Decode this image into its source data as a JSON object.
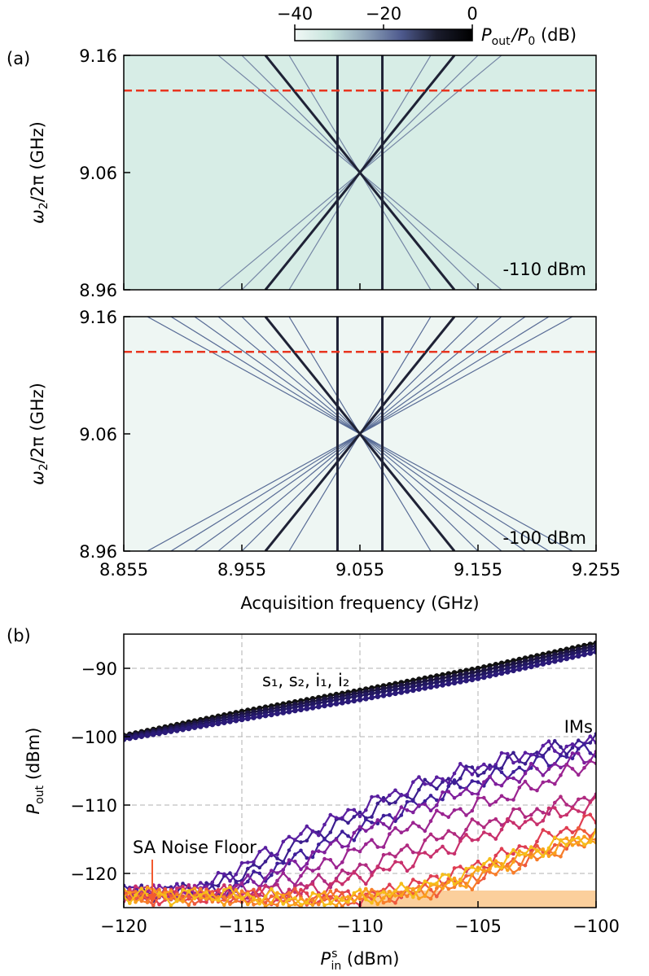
{
  "figure": {
    "label_a": "(a)",
    "label_b": "(b)"
  },
  "colorbar": {
    "ticks": [
      "−40",
      "−20",
      "0"
    ],
    "tick_values": [
      -40,
      -20,
      0
    ],
    "range": [
      -40,
      0
    ],
    "label_main": "P",
    "label_sub_out": "out",
    "label_slash": "/P",
    "label_sub_zero": "0",
    "label_unit": " (dB)",
    "colors": [
      "#f1f8f6",
      "#c6e3dc",
      "#8ea3b8",
      "#4e5a8e",
      "#1a1c2c",
      "#000000"
    ]
  },
  "chart_data": [
    {
      "type": "heatmap",
      "panel": "a-top",
      "annotation": "-110 dBm",
      "ylabel_main": "ω",
      "ylabel_sub": "2",
      "ylabel_rest": "/2π (GHz)",
      "yticks": [
        "9.16",
        "9.06",
        "8.96"
      ],
      "ytick_values": [
        9.16,
        9.06,
        8.96
      ],
      "xlim": [
        8.855,
        9.255
      ],
      "ylim": [
        8.96,
        9.16
      ],
      "dashed_line_y": 9.13,
      "background": "#d7ede6",
      "vertical_lines_x": [
        9.036,
        9.074
      ],
      "main_diagonals": [
        {
          "x0": 8.975,
          "y0": 9.16,
          "x1": 9.135,
          "y1": 8.96
        },
        {
          "x0": 9.135,
          "y0": 9.16,
          "x1": 8.975,
          "y1": 8.96
        }
      ],
      "faint_diagonals_pivot_x": [
        8.935,
        8.955,
        8.995,
        9.115,
        9.155,
        9.175
      ],
      "dashed_line_color": "#e8351f",
      "strong_line_color": "#1f2236",
      "faint_line_color": "#6f7fa0"
    },
    {
      "type": "heatmap",
      "panel": "a-bottom",
      "annotation": "-100 dBm",
      "ylabel_main": "ω",
      "ylabel_sub": "2",
      "ylabel_rest": "/2π (GHz)",
      "yticks": [
        "9.16",
        "9.06",
        "8.96"
      ],
      "ytick_values": [
        9.16,
        9.06,
        8.96
      ],
      "xlabel": "Acquisition frequency (GHz)",
      "xticks": [
        "8.855",
        "8.955",
        "9.055",
        "9.155",
        "9.255"
      ],
      "xtick_values": [
        8.855,
        8.955,
        9.055,
        9.155,
        9.255
      ],
      "xlim": [
        8.855,
        9.255
      ],
      "ylim": [
        8.96,
        9.16
      ],
      "dashed_line_y": 9.13,
      "background": "#eef6f3",
      "vertical_lines_x": [
        9.036,
        9.074
      ],
      "main_diagonals": [
        {
          "x0": 8.975,
          "y0": 9.16,
          "x1": 9.135,
          "y1": 8.96
        },
        {
          "x0": 9.135,
          "y0": 9.16,
          "x1": 8.975,
          "y1": 8.96
        }
      ],
      "faint_diagonals_pivot_x": [
        8.875,
        8.895,
        8.915,
        8.935,
        8.955,
        8.995,
        9.115,
        9.155,
        9.175,
        9.195,
        9.215,
        9.235
      ],
      "dashed_line_color": "#e8351f",
      "strong_line_color": "#1f2236",
      "faint_line_color": "#4f6390"
    },
    {
      "type": "line",
      "panel": "b",
      "xlabel_main": "P",
      "xlabel_sup": "s",
      "xlabel_sub": "in",
      "xlabel_unit": " (dBm)",
      "ylabel_main": "P",
      "ylabel_sub": "out",
      "ylabel_unit": " (dBm)",
      "xlim": [
        -120,
        -100
      ],
      "ylim": [
        -125,
        -85
      ],
      "xticks": [
        "−120",
        "−115",
        "−110",
        "−105",
        "−100"
      ],
      "xtick_values": [
        -120,
        -115,
        -110,
        -105,
        -100
      ],
      "yticks": [
        "−90",
        "−100",
        "−110",
        "−120"
      ],
      "ytick_values": [
        -90,
        -100,
        -110,
        -120
      ],
      "grid": true,
      "annotations": {
        "signal_label": "s₁, s₂, i₁, i₂",
        "im_label": "IMs",
        "noise_label": "SA Noise Floor",
        "noise_color": "#f25a30",
        "noise_band": [
          -125,
          -122.5
        ],
        "noise_band_x": [
          -110,
          -100
        ],
        "noise_band_color": "#fbcf9c"
      },
      "series": [
        {
          "name": "s1",
          "color": "#111111",
          "points": [
            [
              -120,
              -99.8
            ],
            [
              -115,
              -96.3
            ],
            [
              -110,
              -93.2
            ],
            [
              -105,
              -90.0
            ],
            [
              -100,
              -86.3
            ]
          ]
        },
        {
          "name": "s2",
          "color": "#1c1440",
          "points": [
            [
              -120,
              -100.0
            ],
            [
              -115,
              -96.7
            ],
            [
              -110,
              -93.6
            ],
            [
              -105,
              -90.5
            ],
            [
              -100,
              -86.7
            ]
          ]
        },
        {
          "name": "i1",
          "color": "#221860",
          "points": [
            [
              -120,
              -100.2
            ],
            [
              -115,
              -97.1
            ],
            [
              -110,
              -94.0
            ],
            [
              -105,
              -91.0
            ],
            [
              -100,
              -87.1
            ]
          ]
        },
        {
          "name": "i2",
          "color": "#2a1a78",
          "points": [
            [
              -120,
              -100.4
            ],
            [
              -115,
              -97.5
            ],
            [
              -110,
              -94.6
            ],
            [
              -105,
              -91.5
            ],
            [
              -100,
              -87.6
            ]
          ]
        },
        {
          "name": "IM1",
          "color": "#3b1d8f",
          "points": [
            [
              -120,
              -123.0
            ],
            [
              -118,
              -123.0
            ],
            [
              -116,
              -121.5
            ],
            [
              -114,
              -118.5
            ],
            [
              -112,
              -114.5
            ],
            [
              -110,
              -111.5
            ],
            [
              -108,
              -108.5
            ],
            [
              -106,
              -106.0
            ],
            [
              -104,
              -104.0
            ],
            [
              -102,
              -102.0
            ],
            [
              -100,
              -100.5
            ]
          ]
        },
        {
          "name": "IM2",
          "color": "#5a1fa0",
          "points": [
            [
              -120,
              -123.0
            ],
            [
              -118,
              -123.0
            ],
            [
              -116,
              -121.0
            ],
            [
              -114,
              -117.0
            ],
            [
              -112,
              -113.5
            ],
            [
              -110,
              -110.5
            ],
            [
              -108,
              -107.5
            ],
            [
              -106,
              -105.5
            ],
            [
              -104,
              -103.5
            ],
            [
              -102,
              -101.8
            ],
            [
              -100,
              -101.0
            ]
          ]
        },
        {
          "name": "IM3",
          "color": "#3e1e9a",
          "points": [
            [
              -120,
              -123.0
            ],
            [
              -118,
              -123.0
            ],
            [
              -116,
              -123.0
            ],
            [
              -114,
              -120.0
            ],
            [
              -112,
              -116.5
            ],
            [
              -110,
              -113.5
            ],
            [
              -108,
              -110.5
            ],
            [
              -106,
              -107.5
            ],
            [
              -104,
              -105.5
            ],
            [
              -102,
              -103.5
            ],
            [
              -100,
              -101.8
            ]
          ]
        },
        {
          "name": "IM4",
          "color": "#7f1f9c",
          "points": [
            [
              -120,
              -123.0
            ],
            [
              -118,
              -123.0
            ],
            [
              -116,
              -123.0
            ],
            [
              -114,
              -120.5
            ],
            [
              -112,
              -117.5
            ],
            [
              -110,
              -114.0
            ],
            [
              -108,
              -111.0
            ],
            [
              -106,
              -108.5
            ],
            [
              -104,
              -106.5
            ],
            [
              -102,
              -104.5
            ],
            [
              -100,
              -102.5
            ]
          ]
        },
        {
          "name": "IM5",
          "color": "#9b2491",
          "points": [
            [
              -120,
              -123.0
            ],
            [
              -118,
              -123.0
            ],
            [
              -116,
              -123.0
            ],
            [
              -114,
              -122.0
            ],
            [
              -112,
              -119.5
            ],
            [
              -110,
              -116.5
            ],
            [
              -108,
              -113.5
            ],
            [
              -106,
              -111.0
            ],
            [
              -104,
              -109.0
            ],
            [
              -102,
              -106.5
            ],
            [
              -100,
              -103.5
            ]
          ]
        },
        {
          "name": "IM6",
          "color": "#b02a80",
          "points": [
            [
              -120,
              -123.0
            ],
            [
              -118,
              -123.0
            ],
            [
              -116,
              -123.0
            ],
            [
              -114,
              -123.0
            ],
            [
              -112,
              -121.5
            ],
            [
              -110,
              -119.5
            ],
            [
              -108,
              -116.5
            ],
            [
              -106,
              -114.0
            ],
            [
              -104,
              -112.0
            ],
            [
              -102,
              -110.5
            ],
            [
              -100,
              -108.5
            ]
          ]
        },
        {
          "name": "IM7",
          "color": "#c8306c",
          "points": [
            [
              -120,
              -123.0
            ],
            [
              -118,
              -123.0
            ],
            [
              -116,
              -123.0
            ],
            [
              -114,
              -123.0
            ],
            [
              -112,
              -122.5
            ],
            [
              -110,
              -120.5
            ],
            [
              -108,
              -118.5
            ],
            [
              -106,
              -116.0
            ],
            [
              -104,
              -113.5
            ],
            [
              -102,
              -111.5
            ],
            [
              -100,
              -110.0
            ]
          ]
        },
        {
          "name": "IM8",
          "color": "#df3d52",
          "points": [
            [
              -120,
              -123.5
            ],
            [
              -118,
              -123.5
            ],
            [
              -116,
              -123.5
            ],
            [
              -114,
              -123.5
            ],
            [
              -112,
              -123.5
            ],
            [
              -110,
              -123.5
            ],
            [
              -108,
              -122.0
            ],
            [
              -106,
              -120.0
            ],
            [
              -104,
              -117.5
            ],
            [
              -102,
              -114.5
            ],
            [
              -100,
              -112.0
            ]
          ]
        },
        {
          "name": "IM9",
          "color": "#ee5a3c",
          "points": [
            [
              -120,
              -123.5
            ],
            [
              -118,
              -123.5
            ],
            [
              -116,
              -123.5
            ],
            [
              -114,
              -123.5
            ],
            [
              -112,
              -123.5
            ],
            [
              -110,
              -123.5
            ],
            [
              -108,
              -123.0
            ],
            [
              -106,
              -121.5
            ],
            [
              -104,
              -119.0
            ],
            [
              -102,
              -116.5
            ],
            [
              -100,
              -113.5
            ]
          ]
        },
        {
          "name": "IM10",
          "color": "#f77d2a",
          "points": [
            [
              -120,
              -123.0
            ],
            [
              -118,
              -123.5
            ],
            [
              -116,
              -123.5
            ],
            [
              -114,
              -124.0
            ],
            [
              -112,
              -124.0
            ],
            [
              -110,
              -123.5
            ],
            [
              -108,
              -123.0
            ],
            [
              -106,
              -122.0
            ],
            [
              -104,
              -119.5
            ],
            [
              -102,
              -117.0
            ],
            [
              -100,
              -115.0
            ]
          ]
        },
        {
          "name": "IM11",
          "color": "#f9a01c",
          "points": [
            [
              -120,
              -123.0
            ],
            [
              -118,
              -123.0
            ],
            [
              -116,
              -123.5
            ],
            [
              -114,
              -124.0
            ],
            [
              -112,
              -124.0
            ],
            [
              -110,
              -123.5
            ],
            [
              -108,
              -123.0
            ],
            [
              -106,
              -121.5
            ],
            [
              -104,
              -118.5
            ],
            [
              -102,
              -116.5
            ],
            [
              -100,
              -114.5
            ]
          ]
        },
        {
          "name": "IM12",
          "color": "#f6bd1a",
          "points": [
            [
              -120,
              -123.0
            ],
            [
              -118,
              -123.5
            ],
            [
              -116,
              -123.0
            ],
            [
              -114,
              -123.5
            ],
            [
              -112,
              -124.0
            ],
            [
              -110,
              -123.5
            ],
            [
              -108,
              -122.5
            ],
            [
              -106,
              -120.5
            ],
            [
              -104,
              -118.0
            ],
            [
              -102,
              -116.0
            ],
            [
              -100,
              -114.5
            ]
          ]
        }
      ]
    }
  ]
}
